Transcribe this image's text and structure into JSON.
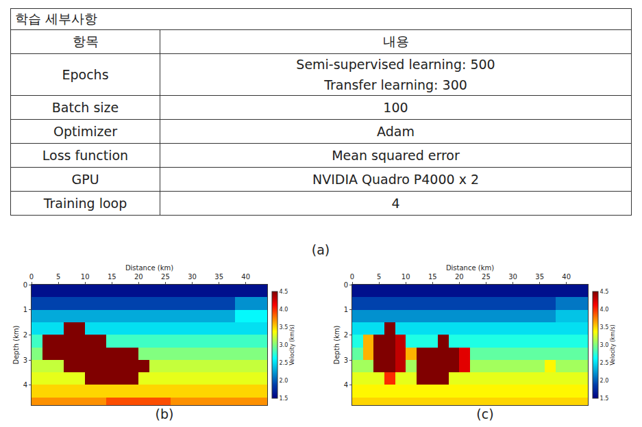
{
  "table": {
    "title": "학습 세부사항",
    "header": [
      "항목",
      "내용"
    ],
    "rows": [
      [
        "Epochs",
        [
          "Semi-supervised learning: 500",
          "Transfer learning: 300"
        ]
      ],
      [
        "Batch size",
        [
          "100"
        ]
      ],
      [
        "Optimizer",
        [
          "Adam"
        ]
      ],
      [
        "Loss function",
        [
          "Mean squared error"
        ]
      ],
      [
        "GPU",
        [
          "NVIDIA Quadro P4000 x 2"
        ]
      ],
      [
        "Training loop",
        [
          "4"
        ]
      ]
    ],
    "caption": "(a)"
  },
  "chart_data": [
    {
      "type": "heatmap",
      "caption": "(b)",
      "x_label": "Distance (km)",
      "y_label": "Depth (km)",
      "colorbar_label": "Velocity (km/s)",
      "xlim": [
        0,
        44
      ],
      "xticks": [
        0,
        5,
        10,
        15,
        20,
        25,
        30,
        35,
        40
      ],
      "ylim": [
        4.8,
        0
      ],
      "yticks": [
        0,
        1,
        2,
        3,
        4
      ],
      "zlim": [
        1.5,
        4.5
      ],
      "zticks": [
        1.5,
        {
          "value": 2,
          "label": "2.0"
        },
        2.5,
        {
          "value": 3,
          "label": "3.0"
        },
        3.5,
        {
          "value": 4,
          "label": "4.0"
        },
        4.5
      ],
      "x": [
        1,
        3,
        5,
        7,
        9,
        11,
        13,
        15,
        17,
        19,
        21,
        23,
        25,
        27,
        29,
        31,
        33,
        35,
        37,
        39,
        41,
        43
      ],
      "y": [
        0.25,
        0.75,
        1.25,
        1.75,
        2.25,
        2.75,
        3.25,
        3.75,
        4.25,
        4.75
      ],
      "z": [
        [
          1.6,
          1.6,
          1.6,
          1.6,
          1.6,
          1.6,
          1.6,
          1.6,
          1.6,
          1.6,
          1.6,
          1.6,
          1.6,
          1.6,
          1.6,
          1.6,
          1.6,
          1.6,
          1.6,
          1.6,
          1.6,
          1.6
        ],
        [
          1.9,
          1.9,
          1.9,
          1.9,
          1.9,
          1.9,
          1.9,
          1.9,
          1.9,
          1.9,
          1.9,
          1.9,
          1.9,
          1.9,
          1.9,
          1.9,
          1.9,
          1.9,
          1.9,
          2.2,
          2.2,
          2.2
        ],
        [
          2.3,
          2.3,
          2.3,
          2.3,
          2.3,
          2.3,
          2.3,
          2.3,
          2.3,
          2.3,
          2.3,
          2.3,
          2.3,
          2.3,
          2.3,
          2.3,
          2.3,
          2.3,
          2.3,
          2.6,
          2.6,
          2.6
        ],
        [
          2.5,
          2.5,
          2.5,
          4.5,
          4.5,
          2.5,
          2.5,
          2.5,
          2.5,
          2.5,
          2.5,
          2.5,
          2.5,
          2.5,
          2.5,
          2.5,
          2.5,
          2.5,
          2.5,
          2.5,
          2.5,
          2.5
        ],
        [
          2.8,
          4.5,
          4.5,
          4.5,
          4.5,
          4.5,
          4.5,
          2.8,
          2.8,
          2.8,
          2.8,
          2.8,
          2.8,
          2.8,
          2.8,
          2.8,
          2.8,
          2.8,
          2.8,
          2.8,
          2.8,
          2.8
        ],
        [
          3.0,
          4.5,
          4.5,
          4.5,
          4.5,
          4.5,
          4.5,
          4.5,
          4.5,
          4.5,
          3.0,
          3.0,
          3.0,
          3.0,
          3.0,
          3.0,
          3.0,
          3.0,
          3.0,
          3.0,
          3.0,
          3.0
        ],
        [
          3.2,
          3.2,
          3.2,
          4.5,
          4.5,
          4.5,
          4.5,
          4.5,
          4.5,
          4.5,
          4.5,
          3.2,
          3.2,
          3.2,
          3.2,
          3.2,
          3.2,
          3.2,
          3.2,
          3.2,
          3.2,
          3.2
        ],
        [
          3.3,
          3.3,
          3.3,
          3.3,
          3.3,
          4.5,
          4.5,
          4.5,
          4.5,
          4.5,
          3.3,
          3.3,
          3.3,
          3.3,
          3.3,
          3.3,
          3.3,
          3.3,
          3.3,
          3.3,
          3.3,
          3.3
        ],
        [
          3.5,
          3.5,
          3.5,
          3.5,
          3.5,
          3.5,
          3.5,
          3.5,
          3.5,
          3.5,
          3.5,
          3.5,
          3.5,
          3.5,
          3.5,
          3.5,
          3.5,
          3.5,
          3.5,
          3.5,
          3.5,
          3.5
        ],
        [
          3.7,
          3.7,
          3.7,
          3.7,
          3.7,
          3.7,
          3.7,
          3.9,
          3.9,
          3.9,
          3.9,
          3.9,
          3.9,
          3.7,
          3.7,
          3.7,
          3.7,
          3.7,
          3.7,
          3.7,
          3.7,
          3.7
        ]
      ]
    },
    {
      "type": "heatmap",
      "caption": "(c)",
      "x_label": "Distance (km)",
      "y_label": "Depth (km)",
      "colorbar_label": "Velocity (km/s)",
      "xlim": [
        0,
        44
      ],
      "xticks": [
        0,
        5,
        10,
        15,
        20,
        25,
        30,
        35,
        40
      ],
      "ylim": [
        4.8,
        0
      ],
      "yticks": [
        0,
        1,
        2,
        3,
        4
      ],
      "zlim": [
        1.5,
        4.5
      ],
      "zticks": [
        1.5,
        {
          "value": 2,
          "label": "2.0"
        },
        2.5,
        {
          "value": 3,
          "label": "3.0"
        },
        3.5,
        {
          "value": 4,
          "label": "4.0"
        },
        4.5
      ],
      "x": [
        1,
        3,
        5,
        7,
        9,
        11,
        13,
        15,
        17,
        19,
        21,
        23,
        25,
        27,
        29,
        31,
        33,
        35,
        37,
        39,
        41,
        43
      ],
      "y": [
        0.25,
        0.75,
        1.25,
        1.75,
        2.25,
        2.75,
        3.25,
        3.75,
        4.25,
        4.75
      ],
      "z": [
        [
          1.6,
          1.6,
          1.6,
          1.6,
          1.6,
          1.6,
          1.6,
          1.6,
          1.6,
          1.6,
          1.6,
          1.6,
          1.6,
          1.6,
          1.6,
          1.6,
          1.6,
          1.6,
          1.6,
          1.6,
          1.6,
          1.6
        ],
        [
          1.9,
          1.9,
          1.9,
          1.9,
          1.9,
          1.9,
          1.9,
          1.9,
          1.9,
          1.9,
          1.9,
          1.9,
          1.9,
          1.9,
          1.9,
          1.9,
          1.9,
          1.9,
          1.9,
          2.1,
          2.1,
          2.1
        ],
        [
          2.2,
          2.2,
          2.2,
          2.2,
          2.2,
          2.2,
          2.2,
          2.2,
          2.2,
          2.2,
          2.2,
          2.2,
          2.2,
          2.2,
          2.2,
          2.2,
          2.2,
          2.2,
          2.2,
          2.4,
          2.4,
          2.4
        ],
        [
          2.5,
          2.5,
          2.5,
          4.5,
          2.5,
          2.5,
          2.5,
          2.5,
          2.5,
          2.5,
          2.5,
          2.5,
          2.5,
          2.5,
          2.5,
          2.5,
          2.5,
          2.5,
          2.5,
          2.5,
          2.5,
          2.5
        ],
        [
          2.7,
          3.6,
          4.5,
          4.5,
          4.3,
          2.7,
          2.7,
          2.7,
          4.5,
          2.7,
          2.7,
          2.7,
          2.7,
          2.7,
          2.7,
          2.7,
          2.7,
          2.7,
          2.7,
          2.7,
          2.7,
          2.7
        ],
        [
          2.9,
          3.6,
          4.5,
          4.5,
          4.3,
          3.6,
          4.5,
          4.5,
          4.5,
          4.5,
          4.2,
          2.9,
          2.9,
          2.9,
          2.9,
          2.9,
          2.9,
          2.9,
          2.9,
          2.9,
          2.9,
          2.9
        ],
        [
          3.1,
          3.1,
          4.5,
          4.5,
          4.3,
          3.1,
          4.5,
          4.5,
          4.5,
          4.5,
          4.2,
          3.1,
          3.1,
          3.1,
          3.1,
          3.1,
          3.1,
          3.1,
          3.4,
          3.1,
          3.1,
          3.1
        ],
        [
          3.3,
          3.3,
          3.3,
          4.0,
          3.3,
          3.3,
          4.5,
          4.5,
          4.5,
          3.3,
          3.3,
          3.3,
          3.3,
          3.3,
          3.3,
          3.3,
          3.3,
          3.3,
          3.3,
          3.3,
          3.3,
          3.3
        ],
        [
          3.4,
          3.4,
          3.4,
          3.4,
          3.4,
          3.4,
          3.4,
          3.4,
          3.4,
          3.4,
          3.4,
          3.4,
          3.4,
          3.4,
          3.4,
          3.4,
          3.4,
          3.4,
          3.4,
          3.4,
          3.4,
          3.4
        ],
        [
          3.5,
          3.5,
          3.5,
          3.5,
          3.5,
          3.5,
          3.5,
          3.5,
          3.5,
          3.5,
          3.5,
          3.5,
          3.5,
          3.5,
          3.5,
          3.5,
          3.5,
          3.5,
          3.5,
          3.5,
          3.5,
          3.5
        ]
      ]
    }
  ]
}
